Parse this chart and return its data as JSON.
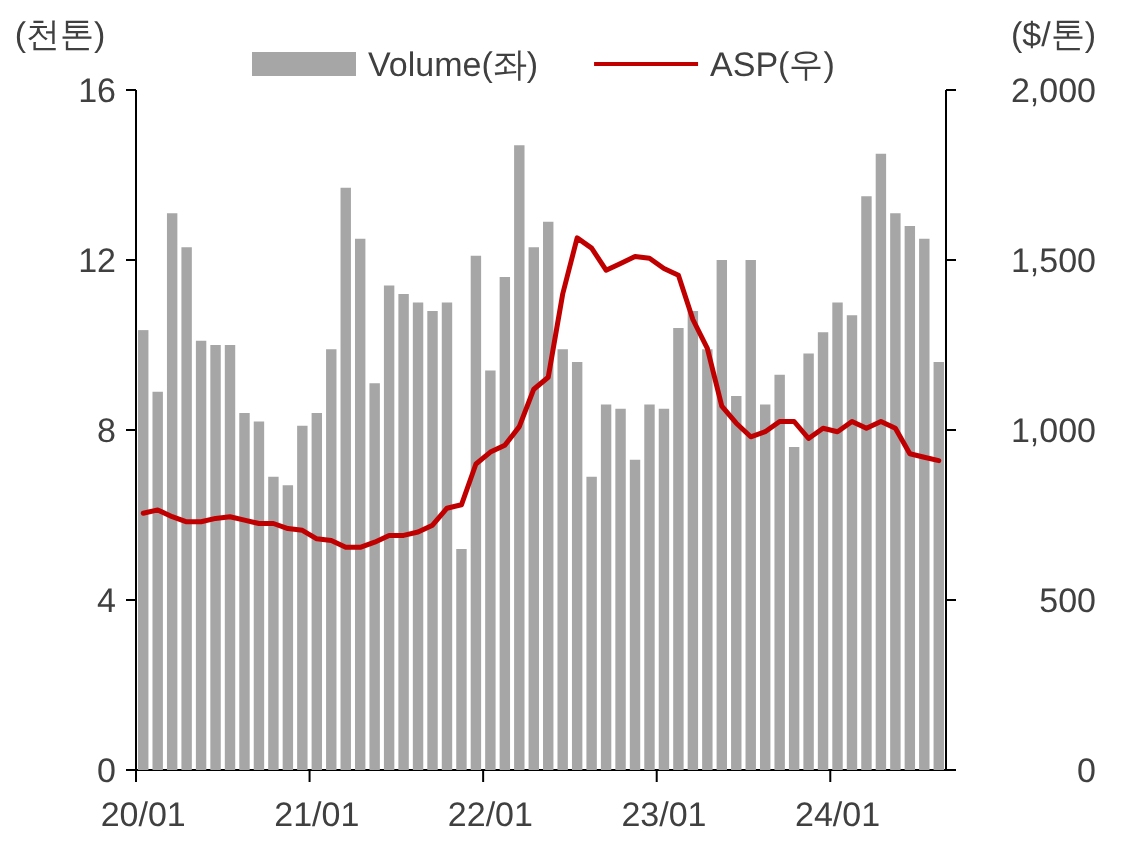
{
  "chart_data": {
    "type": "bar",
    "ylabel": "(천톤)",
    "y2label": "($/톤)",
    "legend": "top",
    "categories": [
      "20/01",
      null,
      null,
      null,
      null,
      null,
      null,
      null,
      null,
      null,
      null,
      null,
      "21/01",
      null,
      null,
      null,
      null,
      null,
      null,
      null,
      null,
      null,
      null,
      null,
      "22/01",
      null,
      null,
      null,
      null,
      null,
      null,
      null,
      null,
      null,
      null,
      null,
      "23/01",
      null,
      null,
      null,
      null,
      null,
      null,
      null,
      null,
      null,
      null,
      null,
      "24/01",
      null,
      null,
      null,
      null,
      null,
      null,
      null
    ],
    "ylim": [
      0,
      16
    ],
    "yticks": [
      0,
      4,
      8,
      12,
      16
    ],
    "y2lim": [
      0,
      2000
    ],
    "y2ticks": [
      0,
      {
        "value": 500,
        "label": "500"
      },
      {
        "value": 1000,
        "label": "1,000"
      },
      {
        "value": 1500,
        "label": "1,500"
      },
      {
        "value": 2000,
        "label": "2,000"
      }
    ],
    "series": [
      {
        "name": "Volume(좌)",
        "color": "#a6a6a6",
        "values": [
          10.35,
          8.9,
          13.1,
          12.3,
          10.1,
          10.0,
          10.0,
          8.4,
          8.2,
          6.9,
          6.7,
          8.1,
          8.4,
          9.9,
          13.7,
          12.5,
          9.1,
          11.4,
          11.2,
          11.0,
          10.8,
          11.0,
          5.2,
          12.1,
          9.4,
          11.6,
          14.7,
          12.3,
          12.9,
          9.9,
          9.6,
          6.9,
          8.6,
          8.5,
          7.3,
          8.6,
          8.5,
          10.4,
          10.8,
          9.9,
          12.0,
          8.8,
          12.0,
          8.6,
          9.3,
          7.6,
          9.8,
          10.3,
          11.0,
          10.7,
          13.5,
          14.5,
          13.1,
          12.8,
          12.5,
          9.6
        ]
      },
      {
        "name": "ASP(우)",
        "type": "line",
        "axis": "y2",
        "color": "#c00000",
        "values": [
          755,
          765,
          745,
          730,
          730,
          740,
          745,
          735,
          725,
          725,
          710,
          705,
          680,
          675,
          655,
          655,
          670,
          690,
          690,
          700,
          720,
          770,
          780,
          900,
          935,
          955,
          1010,
          1120,
          1155,
          1400,
          1565,
          1535,
          1470,
          1490,
          1510,
          1505,
          1475,
          1455,
          1325,
          1240,
          1070,
          1020,
          980,
          995,
          1025,
          1025,
          975,
          1005,
          995,
          1025,
          1005,
          1025,
          1005,
          930,
          920,
          910
        ]
      }
    ]
  }
}
